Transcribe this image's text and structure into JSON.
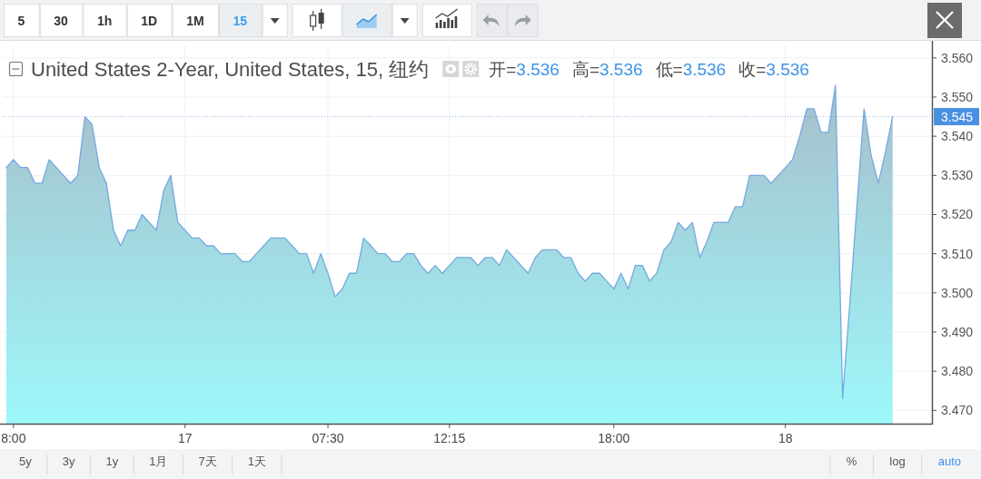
{
  "chart_data": {
    "type": "area",
    "title": "United States 2-Year, United States, 15, 纽约",
    "categories": [
      null,
      "8:00",
      null,
      null,
      null,
      null,
      null,
      null,
      null,
      null,
      null,
      null,
      null,
      null,
      null,
      null,
      null,
      null,
      null,
      null,
      null,
      null,
      null,
      null,
      null,
      "17",
      null,
      null,
      null,
      null,
      null,
      null,
      null,
      null,
      null,
      null,
      null,
      null,
      null,
      null,
      null,
      null,
      null,
      null,
      null,
      "07:30",
      null,
      null,
      null,
      null,
      null,
      null,
      null,
      null,
      null,
      null,
      null,
      null,
      null,
      null,
      null,
      null,
      "12:15",
      null,
      null,
      null,
      null,
      null,
      null,
      null,
      null,
      null,
      null,
      null,
      null,
      null,
      null,
      null,
      null,
      null,
      null,
      null,
      null,
      null,
      null,
      "18:00",
      null,
      null,
      null,
      null,
      null,
      null,
      null,
      null,
      null,
      null,
      null,
      null,
      null,
      null,
      null,
      null,
      null,
      null,
      null,
      null,
      null,
      null,
      null,
      "18",
      null,
      null,
      null,
      null,
      null,
      null,
      null,
      null,
      null,
      null,
      null,
      null,
      null,
      null,
      null,
      null,
      null,
      null,
      null,
      null
    ],
    "values": [
      3.532,
      3.534,
      3.532,
      3.532,
      3.528,
      3.528,
      3.534,
      3.532,
      3.53,
      3.528,
      3.53,
      3.545,
      3.543,
      3.532,
      3.528,
      3.516,
      3.512,
      3.516,
      3.516,
      3.52,
      3.518,
      3.516,
      3.526,
      3.53,
      3.518,
      3.516,
      3.514,
      3.514,
      3.512,
      3.512,
      3.51,
      3.51,
      3.51,
      3.508,
      3.508,
      3.51,
      3.512,
      3.514,
      3.514,
      3.514,
      3.512,
      3.51,
      3.51,
      3.505,
      3.51,
      3.505,
      3.499,
      3.501,
      3.505,
      3.505,
      3.514,
      3.512,
      3.51,
      3.51,
      3.508,
      3.508,
      3.51,
      3.51,
      3.507,
      3.505,
      3.507,
      3.505,
      3.507,
      3.509,
      3.509,
      3.509,
      3.507,
      3.509,
      3.509,
      3.507,
      3.511,
      3.509,
      3.507,
      3.505,
      3.509,
      3.511,
      3.511,
      3.511,
      3.509,
      3.509,
      3.505,
      3.503,
      3.505,
      3.505,
      3.503,
      3.501,
      3.505,
      3.501,
      3.507,
      3.507,
      3.503,
      3.505,
      3.511,
      3.513,
      3.518,
      3.516,
      3.518,
      3.509,
      3.513,
      3.518,
      3.518,
      3.518,
      3.522,
      3.522,
      3.53,
      3.53,
      3.53,
      3.528,
      3.53,
      3.532,
      3.534,
      3.54,
      3.547,
      3.547,
      3.541,
      3.541,
      3.553,
      3.473,
      3.497,
      3.522,
      3.547,
      3.535,
      3.528,
      3.536,
      3.545,
      null,
      null,
      null,
      null,
      null
    ],
    "color": "#74a9e0",
    "ylim": [
      3.4666,
      3.5632
    ],
    "yticks": [
      {
        "value": 3.47,
        "label": "3.470"
      },
      {
        "value": 3.48,
        "label": "3.480"
      },
      {
        "value": 3.49,
        "label": "3.490"
      },
      {
        "value": 3.5,
        "label": "3.500"
      },
      {
        "value": 3.51,
        "label": "3.510"
      },
      {
        "value": 3.52,
        "label": "3.520"
      },
      {
        "value": 3.53,
        "label": "3.530"
      },
      {
        "value": 3.54,
        "label": "3.540"
      },
      {
        "value": 3.55,
        "label": "3.550"
      },
      {
        "value": 3.56,
        "label": "3.560"
      }
    ],
    "grid": true,
    "ref_lines": [
      {
        "axis": "y",
        "value": 3.545,
        "label": "3.545",
        "color": "#4a90e2",
        "line_style": "dotted"
      }
    ],
    "annotations": [
      "开=3.536",
      "高=3.536",
      "低=3.536",
      "收=3.536",
      "5",
      "30",
      "1h",
      "1D",
      "1M",
      "15",
      "5y",
      "3y",
      "1y",
      "1月",
      "7天",
      "1天",
      "%",
      "log",
      "auto"
    ]
  }
}
